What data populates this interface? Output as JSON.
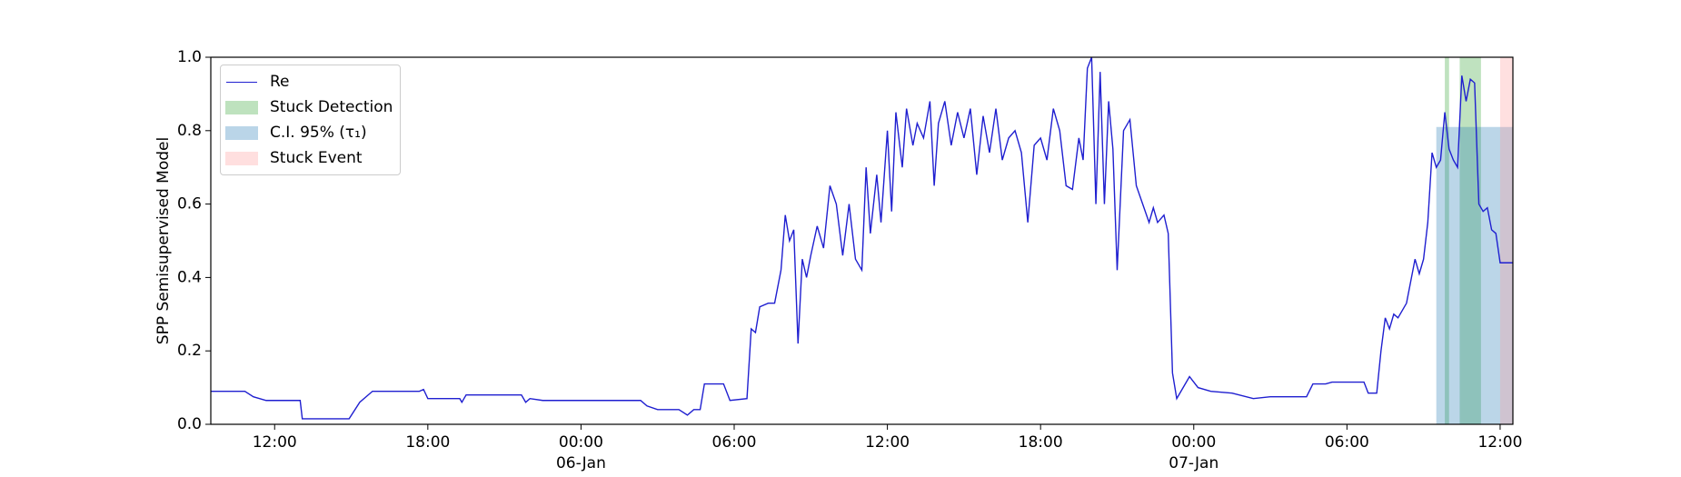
{
  "chart_data": {
    "type": "line",
    "ylabel": "SPP Semisupervised Model",
    "xlim": [
      "1900-01-05T09:30",
      "1900-01-07T12:30"
    ],
    "ylim": [
      0,
      1
    ],
    "yticks": [
      {
        "value": 0,
        "label": "0.0"
      },
      0.2,
      0.4,
      0.6,
      0.8,
      {
        "value": 1,
        "label": "1.0"
      }
    ],
    "xticks": [
      {
        "value": "1900-01-05T12:00",
        "label": "12:00"
      },
      {
        "value": "1900-01-05T18:00",
        "label": "18:00"
      },
      {
        "value": "1900-01-06T00:00",
        "label": "00:00\n06-Jan\n1900"
      },
      {
        "value": "1900-01-06T06:00",
        "label": "06:00"
      },
      {
        "value": "1900-01-06T12:00",
        "label": "12:00"
      },
      {
        "value": "1900-01-06T18:00",
        "label": "18:00"
      },
      {
        "value": "1900-01-07T00:00",
        "label": "00:00\n07-Jan"
      },
      {
        "value": "1900-01-07T06:00",
        "label": "06:00"
      },
      {
        "value": "1900-01-07T12:00",
        "label": "12:00"
      }
    ],
    "legend": "upper left",
    "x": [
      "1900-01-05T09:30",
      "1900-01-05T10:50",
      "1900-01-05T11:10",
      "1900-01-05T11:40",
      "1900-01-05T13:00",
      "1900-01-05T13:05",
      "1900-01-05T14:55",
      "1900-01-05T15:20",
      "1900-01-05T15:50",
      "1900-01-05T17:40",
      "1900-01-05T17:50",
      "1900-01-05T18:00",
      "1900-01-05T19:15",
      "1900-01-05T19:20",
      "1900-01-05T19:30",
      "1900-01-05T21:40",
      "1900-01-05T21:50",
      "1900-01-05T22:00",
      "1900-01-05T22:30",
      "1900-01-06T02:20",
      "1900-01-06T02:35",
      "1900-01-06T03:00",
      "1900-01-06T03:50",
      "1900-01-06T04:10",
      "1900-01-06T04:25",
      "1900-01-06T04:40",
      "1900-01-06T04:50",
      "1900-01-06T05:35",
      "1900-01-06T05:50",
      "1900-01-06T06:30",
      "1900-01-06T06:40",
      "1900-01-06T06:50",
      "1900-01-06T07:00",
      "1900-01-06T07:20",
      "1900-01-06T07:35",
      "1900-01-06T07:50",
      "1900-01-06T08:00",
      "1900-01-06T08:10",
      "1900-01-06T08:20",
      "1900-01-06T08:30",
      "1900-01-06T08:40",
      "1900-01-06T08:50",
      "1900-01-06T09:00",
      "1900-01-06T09:15",
      "1900-01-06T09:30",
      "1900-01-06T09:45",
      "1900-01-06T10:00",
      "1900-01-06T10:15",
      "1900-01-06T10:30",
      "1900-01-06T10:45",
      "1900-01-06T11:00",
      "1900-01-06T11:10",
      "1900-01-06T11:20",
      "1900-01-06T11:35",
      "1900-01-06T11:45",
      "1900-01-06T12:00",
      "1900-01-06T12:10",
      "1900-01-06T12:20",
      "1900-01-06T12:35",
      "1900-01-06T12:45",
      "1900-01-06T13:00",
      "1900-01-06T13:10",
      "1900-01-06T13:25",
      "1900-01-06T13:40",
      "1900-01-06T13:50",
      "1900-01-06T14:00",
      "1900-01-06T14:15",
      "1900-01-06T14:30",
      "1900-01-06T14:45",
      "1900-01-06T15:00",
      "1900-01-06T15:15",
      "1900-01-06T15:30",
      "1900-01-06T15:45",
      "1900-01-06T16:00",
      "1900-01-06T16:15",
      "1900-01-06T16:30",
      "1900-01-06T16:45",
      "1900-01-06T17:00",
      "1900-01-06T17:15",
      "1900-01-06T17:30",
      "1900-01-06T17:45",
      "1900-01-06T18:00",
      "1900-01-06T18:15",
      "1900-01-06T18:30",
      "1900-01-06T18:45",
      "1900-01-06T19:00",
      "1900-01-06T19:15",
      "1900-01-06T19:30",
      "1900-01-06T19:40",
      "1900-01-06T19:50",
      "1900-01-06T20:00",
      "1900-01-06T20:10",
      "1900-01-06T20:20",
      "1900-01-06T20:30",
      "1900-01-06T20:40",
      "1900-01-06T20:50",
      "1900-01-06T21:00",
      "1900-01-06T21:15",
      "1900-01-06T21:30",
      "1900-01-06T21:45",
      "1900-01-06T22:00",
      "1900-01-06T22:15",
      "1900-01-06T22:25",
      "1900-01-06T22:35",
      "1900-01-06T22:50",
      "1900-01-06T23:00",
      "1900-01-06T23:10",
      "1900-01-06T23:20",
      "1900-01-06T23:30",
      "1900-01-06T23:50",
      "1900-01-07T00:10",
      "1900-01-07T00:40",
      "1900-01-07T01:30",
      "1900-01-07T02:20",
      "1900-01-07T03:00",
      "1900-01-07T04:25",
      "1900-01-07T04:40",
      "1900-01-07T05:10",
      "1900-01-07T05:25",
      "1900-01-07T06:40",
      "1900-01-07T06:50",
      "1900-01-07T07:10",
      "1900-01-07T07:20",
      "1900-01-07T07:30",
      "1900-01-07T07:40",
      "1900-01-07T07:50",
      "1900-01-07T08:00",
      "1900-01-07T08:20",
      "1900-01-07T08:40",
      "1900-01-07T08:50",
      "1900-01-07T09:00",
      "1900-01-07T09:10",
      "1900-01-07T09:20",
      "1900-01-07T09:30",
      "1900-01-07T09:40",
      "1900-01-07T09:50",
      "1900-01-07T10:00",
      "1900-01-07T10:10",
      "1900-01-07T10:20",
      "1900-01-07T10:30",
      "1900-01-07T10:40",
      "1900-01-07T10:50",
      "1900-01-07T11:00",
      "1900-01-07T11:10",
      "1900-01-07T11:20",
      "1900-01-07T11:30",
      "1900-01-07T11:40",
      "1900-01-07T11:50",
      "1900-01-07T12:00",
      "1900-01-07T12:30"
    ],
    "series": [
      {
        "name": "Re",
        "color": "#1f1fd0",
        "values": [
          0.09,
          0.09,
          0.075,
          0.065,
          0.065,
          0.015,
          0.015,
          0.06,
          0.09,
          0.09,
          0.095,
          0.07,
          0.07,
          0.06,
          0.08,
          0.08,
          0.06,
          0.07,
          0.065,
          0.065,
          0.05,
          0.04,
          0.04,
          0.025,
          0.04,
          0.04,
          0.11,
          0.11,
          0.065,
          0.07,
          0.26,
          0.25,
          0.32,
          0.33,
          0.33,
          0.42,
          0.57,
          0.5,
          0.53,
          0.22,
          0.45,
          0.4,
          0.46,
          0.54,
          0.48,
          0.65,
          0.6,
          0.46,
          0.6,
          0.45,
          0.42,
          0.7,
          0.52,
          0.68,
          0.55,
          0.8,
          0.58,
          0.85,
          0.7,
          0.86,
          0.76,
          0.82,
          0.78,
          0.88,
          0.65,
          0.82,
          0.88,
          0.76,
          0.85,
          0.78,
          0.86,
          0.68,
          0.84,
          0.74,
          0.86,
          0.72,
          0.78,
          0.8,
          0.74,
          0.55,
          0.76,
          0.78,
          0.72,
          0.86,
          0.8,
          0.65,
          0.64,
          0.78,
          0.72,
          0.97,
          1.0,
          0.6,
          0.96,
          0.6,
          0.88,
          0.75,
          0.42,
          0.8,
          0.83,
          0.65,
          0.6,
          0.55,
          0.59,
          0.55,
          0.57,
          0.52,
          0.14,
          0.07,
          0.09,
          0.13,
          0.1,
          0.09,
          0.085,
          0.07,
          0.075,
          0.075,
          0.11,
          0.11,
          0.115,
          0.115,
          0.085,
          0.085,
          0.2,
          0.29,
          0.26,
          0.3,
          0.29,
          0.33,
          0.45,
          0.41,
          0.45,
          0.55,
          0.74,
          0.7,
          0.72,
          0.85,
          0.75,
          0.72,
          0.7,
          0.95,
          0.88,
          0.94,
          0.93,
          0.6,
          0.58,
          0.59,
          0.53,
          0.52,
          0.44,
          0.44
        ]
      }
    ],
    "spans": [
      {
        "name": "Stuck Detection",
        "color": "#2ca02c",
        "regions": [
          {
            "x": [
              "1900-01-07T09:50",
              "1900-01-07T10:00"
            ],
            "y": [
              0,
              1
            ]
          },
          {
            "x": [
              "1900-01-07T10:25",
              "1900-01-07T11:15"
            ],
            "y": [
              0,
              1
            ]
          }
        ]
      },
      {
        "name": "C.I. 95% (τ₁)",
        "color": "#1f77b4",
        "regions": [
          {
            "x": [
              "1900-01-07T09:30",
              "1900-01-07T12:30"
            ],
            "y": [
              0,
              0.81
            ]
          }
        ]
      },
      {
        "name": "Stuck Event",
        "color": "#ff9999",
        "regions": [
          {
            "x": [
              "1900-01-07T12:00",
              "1900-01-07T12:30"
            ],
            "y": [
              0,
              1
            ]
          }
        ]
      }
    ]
  }
}
